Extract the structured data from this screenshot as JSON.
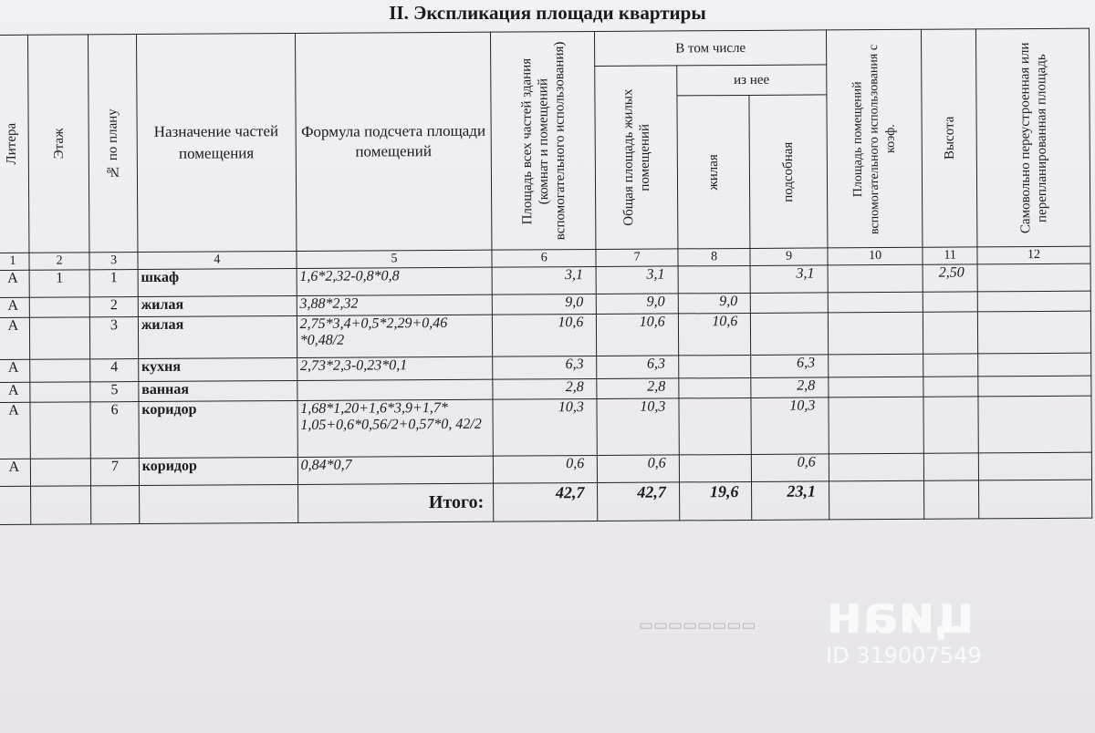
{
  "title": "II. Экспликация площади квартиры",
  "headers": {
    "litera": "Литера",
    "etazh": "Этаж",
    "no_po_planu": "№ по плану",
    "naznachenie": "Назначение частей помещения",
    "formula": "Формула подсчета площади помещений",
    "ploshchad_vsekh": "Площадь всех частей здания (комнат и помещений вспомогательного использования)",
    "v_tom_chisle": "В том числе",
    "obshchaya": "Общая площадь жилых помещений",
    "iz_nee": "из нее",
    "zhilaya": "жилая",
    "podsobnaya": "подсобная",
    "vspomog": "Площадь помещений вспомогательного использования с коэф.",
    "vysota": "Высота",
    "samovolno": "Самовольно переустроенная или перепланированная площадь"
  },
  "column_numbers": [
    "1",
    "2",
    "3",
    "4",
    "5",
    "6",
    "7",
    "8",
    "9",
    "10",
    "11",
    "12"
  ],
  "rows": [
    {
      "litera": "А",
      "etazh": "1",
      "no": "1",
      "name": "шкаф",
      "formula": "1,6*2,32-0,8*0,8",
      "total": "3,1",
      "obshchaya": "3,1",
      "zhilaya": "",
      "podsobnaya": "3,1",
      "vspomog": "",
      "vysota": "2,50",
      "samovolno": ""
    },
    {
      "litera": "А",
      "etazh": "",
      "no": "2",
      "name": "жилая",
      "formula": "3,88*2,32",
      "total": "9,0",
      "obshchaya": "9,0",
      "zhilaya": "9,0",
      "podsobnaya": "",
      "vspomog": "",
      "vysota": "",
      "samovolno": ""
    },
    {
      "litera": "А",
      "etazh": "",
      "no": "3",
      "name": "жилая",
      "formula": "2,75*3,4+0,5*2,29+0,46 *0,48/2",
      "total": "10,6",
      "obshchaya": "10,6",
      "zhilaya": "10,6",
      "podsobnaya": "",
      "vspomog": "",
      "vysota": "",
      "samovolno": ""
    },
    {
      "litera": "А",
      "etazh": "",
      "no": "4",
      "name": "кухня",
      "formula": "2,73*2,3-0,23*0,1",
      "total": "6,3",
      "obshchaya": "6,3",
      "zhilaya": "",
      "podsobnaya": "6,3",
      "vspomog": "",
      "vysota": "",
      "samovolno": ""
    },
    {
      "litera": "А",
      "etazh": "",
      "no": "5",
      "name": "ванная",
      "formula": "",
      "total": "2,8",
      "obshchaya": "2,8",
      "zhilaya": "",
      "podsobnaya": "2,8",
      "vspomog": "",
      "vysota": "",
      "samovolno": ""
    },
    {
      "litera": "А",
      "etazh": "",
      "no": "6",
      "name": "коридор",
      "formula": "1,68*1,20+1,6*3,9+1,7* 1,05+0,6*0,56/2+0,57*0, 42/2",
      "total": "10,3",
      "obshchaya": "10,3",
      "zhilaya": "",
      "podsobnaya": "10,3",
      "vspomog": "",
      "vysota": "",
      "samovolno": ""
    },
    {
      "litera": "А",
      "etazh": "",
      "no": "7",
      "name": "коридор",
      "formula": "0,84*0,7",
      "total": "0,6",
      "obshchaya": "0,6",
      "zhilaya": "",
      "podsobnaya": "0,6",
      "vspomog": "",
      "vysota": "",
      "samovolno": ""
    }
  ],
  "totals": {
    "label": "Итого:",
    "total": "42,7",
    "obshchaya": "42,7",
    "zhilaya": "19,6",
    "podsobnaya": "23,1"
  },
  "watermark": {
    "brand": "циан",
    "id": "ID 319007549"
  }
}
